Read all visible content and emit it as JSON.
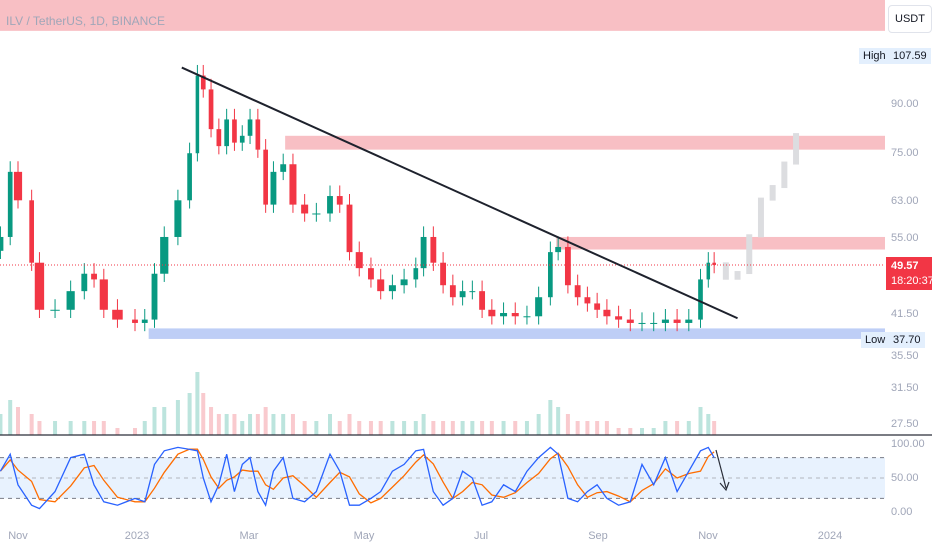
{
  "header": {
    "title": "ILV / TetherUS, 1D, BINANCE",
    "currency": "USDT"
  },
  "price_axis": {
    "ticks": [
      "90.00",
      "75.00",
      "63.00",
      "55.00",
      "41.50",
      "35.50",
      "31.50",
      "27.50"
    ],
    "high_label": "High",
    "high_value": "107.59",
    "low_label": "Low",
    "low_value": "37.70",
    "last_price": "49.57",
    "countdown": "18:20:37"
  },
  "osc_axis": {
    "ticks": [
      "100.00",
      "50.00",
      "0.00"
    ]
  },
  "time_axis": {
    "ticks": [
      "Nov",
      "2023",
      "Mar",
      "May",
      "Jul",
      "Sep",
      "Nov",
      "2024"
    ]
  },
  "colors": {
    "up": "#089981",
    "down": "#f23645",
    "zone_red": "#f8bcc1",
    "zone_blue": "#b7c9f5",
    "k": "#2962ff",
    "d": "#ff6d00"
  },
  "chart_data": {
    "type": "candlestick",
    "scale": "log",
    "ylim": [
      25.5,
      113
    ],
    "x": [
      "2022-10-23",
      "2022-10-28",
      "2022-11-01",
      "2022-11-08",
      "2022-11-12",
      "2022-11-20",
      "2022-11-28",
      "2022-12-05",
      "2022-12-10",
      "2022-12-15",
      "2022-12-22",
      "2022-12-31",
      "2023-01-05",
      "2023-01-10",
      "2023-01-15",
      "2023-01-22",
      "2023-01-28",
      "2023-02-01",
      "2023-02-04",
      "2023-02-08",
      "2023-02-12",
      "2023-02-16",
      "2023-02-20",
      "2023-02-24",
      "2023-02-28",
      "2023-03-04",
      "2023-03-08",
      "2023-03-12",
      "2023-03-17",
      "2023-03-22",
      "2023-03-28",
      "2023-04-03",
      "2023-04-10",
      "2023-04-15",
      "2023-04-20",
      "2023-04-25",
      "2023-05-01",
      "2023-05-06",
      "2023-05-12",
      "2023-05-18",
      "2023-05-24",
      "2023-05-28",
      "2023-06-02",
      "2023-06-07",
      "2023-06-12",
      "2023-06-17",
      "2023-06-22",
      "2023-06-27",
      "2023-07-02",
      "2023-07-08",
      "2023-07-14",
      "2023-07-20",
      "2023-07-26",
      "2023-08-01",
      "2023-08-05",
      "2023-08-10",
      "2023-08-15",
      "2023-08-20",
      "2023-08-25",
      "2023-08-30",
      "2023-09-05",
      "2023-09-11",
      "2023-09-17",
      "2023-09-23",
      "2023-09-29",
      "2023-10-05",
      "2023-10-11",
      "2023-10-17",
      "2023-10-21",
      "2023-10-24"
    ],
    "close": [
      55,
      70,
      63,
      50,
      42,
      42,
      45,
      48,
      47,
      42,
      40.5,
      40,
      40.5,
      48,
      55,
      63,
      75,
      100,
      95,
      82,
      77,
      85,
      78,
      80,
      85,
      76,
      62,
      70,
      72,
      62,
      60,
      60,
      64,
      62,
      52,
      49,
      47,
      45,
      46,
      47,
      49,
      55,
      50,
      46,
      44,
      45,
      45,
      42,
      41,
      41.5,
      41,
      41,
      44,
      52,
      53,
      46,
      44,
      43,
      42,
      41,
      40.5,
      40,
      40,
      40,
      40.5,
      40,
      40.5,
      47,
      50,
      49.57
    ],
    "volume": [
      3,
      5,
      4,
      3,
      2,
      2,
      2,
      2,
      2,
      2,
      1,
      1,
      2,
      4,
      4,
      5,
      6,
      9,
      6,
      4,
      3,
      3,
      3,
      2,
      3,
      3,
      4,
      3,
      3,
      3,
      2,
      2,
      3,
      2,
      3,
      2,
      2,
      2,
      2,
      2,
      2,
      3,
      2,
      2,
      2,
      2,
      2,
      2,
      2,
      2,
      2,
      2,
      3,
      5,
      4,
      3,
      2,
      2,
      2,
      2,
      1,
      1,
      1,
      1,
      2,
      2,
      2,
      4,
      3,
      2
    ],
    "stoch_k": [
      60,
      85,
      40,
      10,
      5,
      30,
      80,
      85,
      40,
      15,
      10,
      20,
      15,
      70,
      90,
      95,
      92,
      90,
      50,
      15,
      40,
      85,
      30,
      70,
      80,
      30,
      10,
      60,
      80,
      20,
      15,
      30,
      85,
      60,
      10,
      10,
      20,
      30,
      60,
      70,
      90,
      92,
      30,
      10,
      20,
      60,
      50,
      10,
      15,
      40,
      30,
      60,
      80,
      95,
      85,
      20,
      15,
      30,
      40,
      20,
      10,
      15,
      70,
      40,
      80,
      30,
      60,
      90,
      95,
      80
    ],
    "trendline": [
      {
        "date": "2023-01-24",
        "price": 103
      },
      {
        "date": "2023-11-05",
        "price": 40.7
      }
    ],
    "zones": [
      {
        "from": "2022-10-20",
        "top": 135,
        "bottom": 118,
        "color": "red"
      },
      {
        "from": "2023-03-18",
        "top": 80,
        "bottom": 76,
        "color": "red"
      },
      {
        "from": "2023-08-04",
        "top": 55,
        "bottom": 52.5,
        "color": "red"
      },
      {
        "from": "2023-01-07",
        "top": 39.2,
        "bottom": 37.7,
        "color": "blue"
      }
    ],
    "projection": {
      "from": "2023-10-24",
      "to": "2023-12-05",
      "prices": [
        49.57,
        47,
        48,
        55,
        63,
        66,
        72,
        80
      ]
    },
    "osc_levels": [
      80,
      20
    ]
  }
}
